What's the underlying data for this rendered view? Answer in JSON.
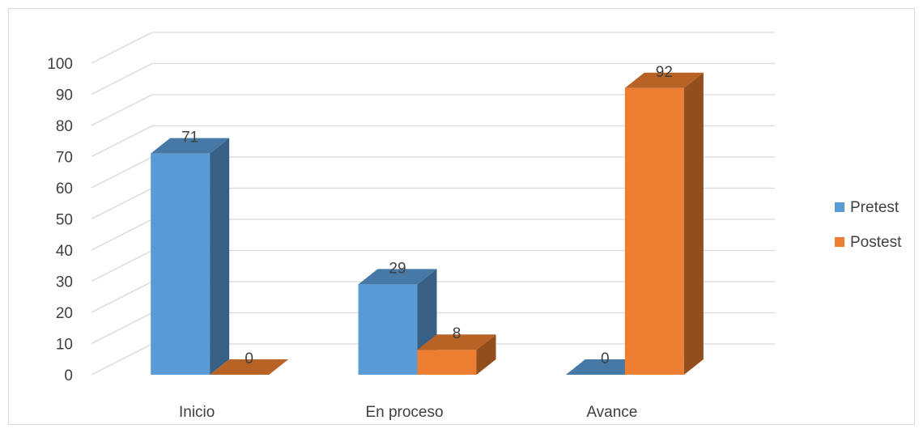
{
  "chart_data": {
    "type": "bar",
    "categories": [
      "Inicio",
      "En proceso",
      "Avance"
    ],
    "series": [
      {
        "name": "Pretest",
        "values": [
          71,
          29,
          0
        ],
        "color": "#5b9bd5"
      },
      {
        "name": "Postest",
        "values": [
          0,
          8,
          92
        ],
        "color": "#ed7d31"
      }
    ],
    "ylim": [
      0,
      100
    ],
    "yticks": [
      0,
      10,
      20,
      30,
      40,
      50,
      60,
      70,
      80,
      90,
      100
    ],
    "grid": true,
    "legend_position": "right",
    "three_d": true
  }
}
